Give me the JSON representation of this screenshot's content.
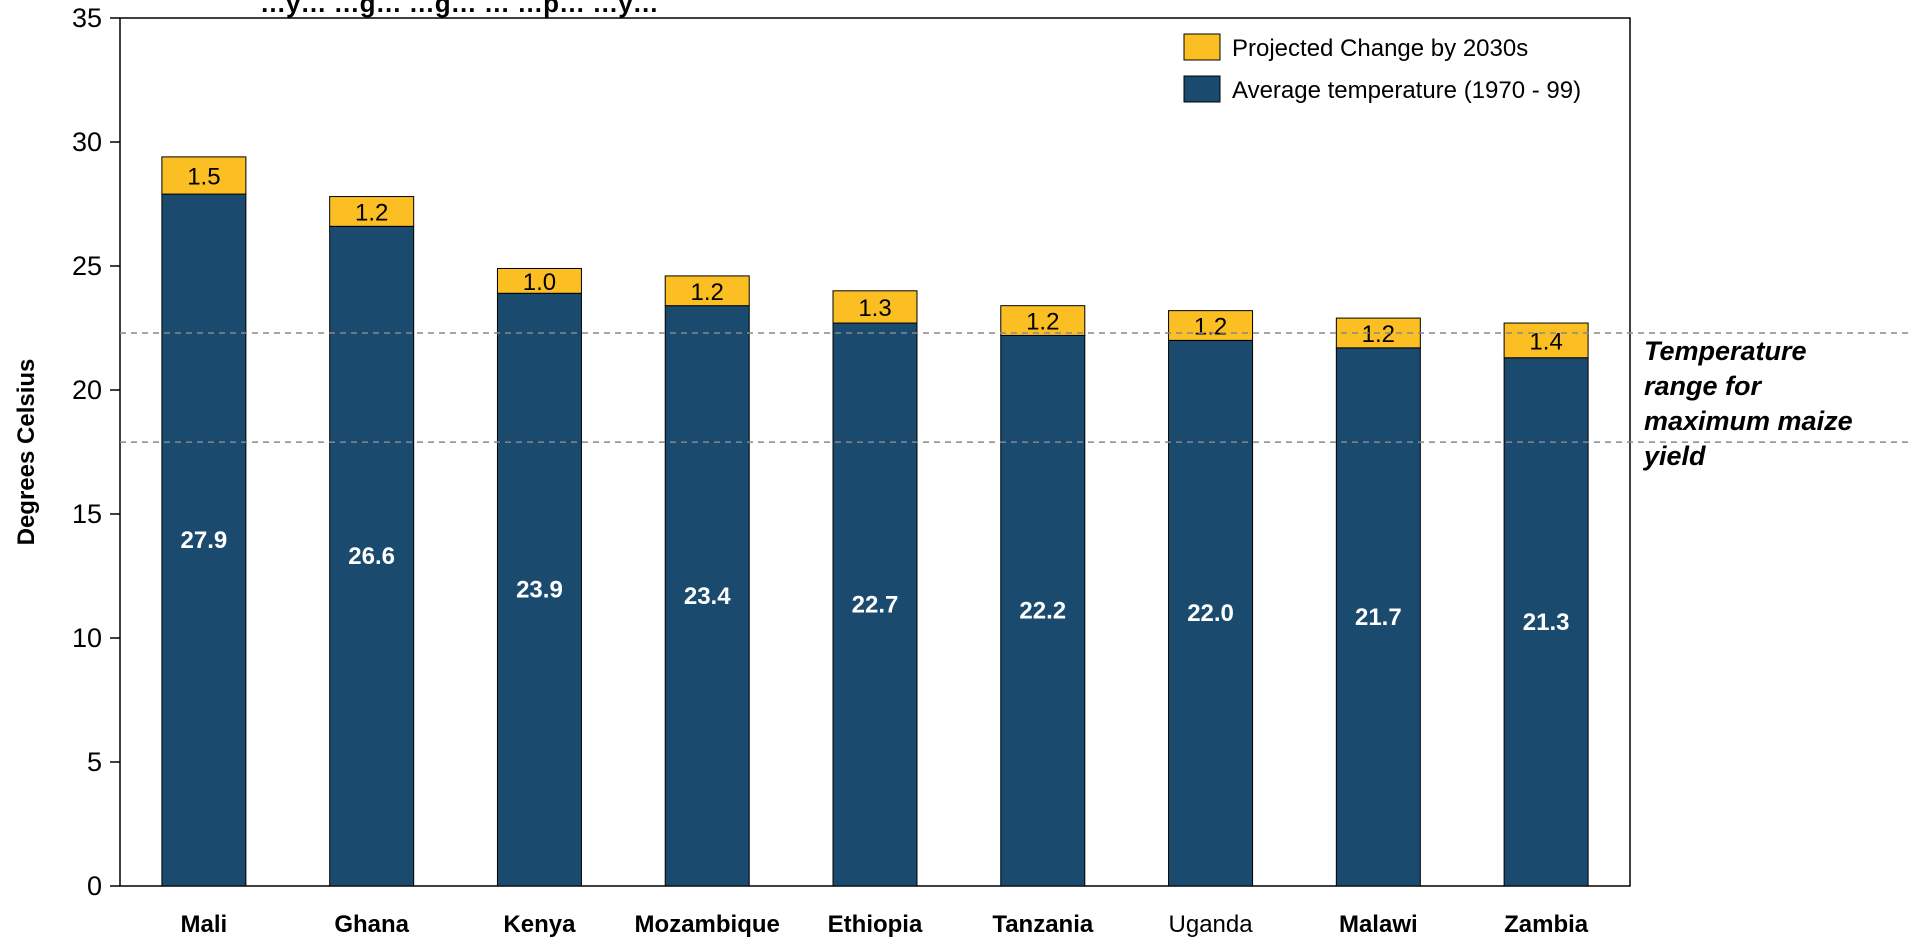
{
  "chart_data": {
    "type": "bar",
    "stacked": true,
    "title": "…y… …g… …g… … …p… …y…",
    "ylabel": "Degrees Celsius",
    "ylim": [
      0,
      35
    ],
    "yticks": [
      0,
      5,
      10,
      15,
      20,
      25,
      30,
      35
    ],
    "grid": false,
    "legend_position": "top-right",
    "categories": [
      "Mali",
      "Ghana",
      "Kenya",
      "Mozambique",
      "Ethiopia",
      "Tanzania",
      "Uganda",
      "Malawi",
      "Zambia"
    ],
    "category_bold": [
      true,
      true,
      true,
      true,
      true,
      true,
      false,
      true,
      true
    ],
    "series": [
      {
        "name": "Average temperature (1970 - 99)",
        "color": "#1a4a6e",
        "values": [
          27.9,
          26.6,
          23.9,
          23.4,
          22.7,
          22.2,
          22.0,
          21.7,
          21.3
        ],
        "labels": [
          "27.9",
          "26.6",
          "23.9",
          "23.4",
          "22.7",
          "22.2",
          "22.0",
          "21.7",
          "21.3"
        ]
      },
      {
        "name": "Projected Change by 2030s",
        "color": "#fbbf24",
        "values": [
          1.5,
          1.2,
          1.0,
          1.2,
          1.3,
          1.2,
          1.2,
          1.2,
          1.4
        ],
        "labels": [
          "1.5",
          "1.2",
          "1.0",
          "1.2",
          "1.3",
          "1.2",
          "1.2",
          "1.2",
          "1.4"
        ]
      }
    ],
    "reference_lines": [
      22.3,
      17.9
    ],
    "annotation_lines": [
      "Temperature",
      "range for",
      "maximum maize",
      "yield"
    ]
  }
}
